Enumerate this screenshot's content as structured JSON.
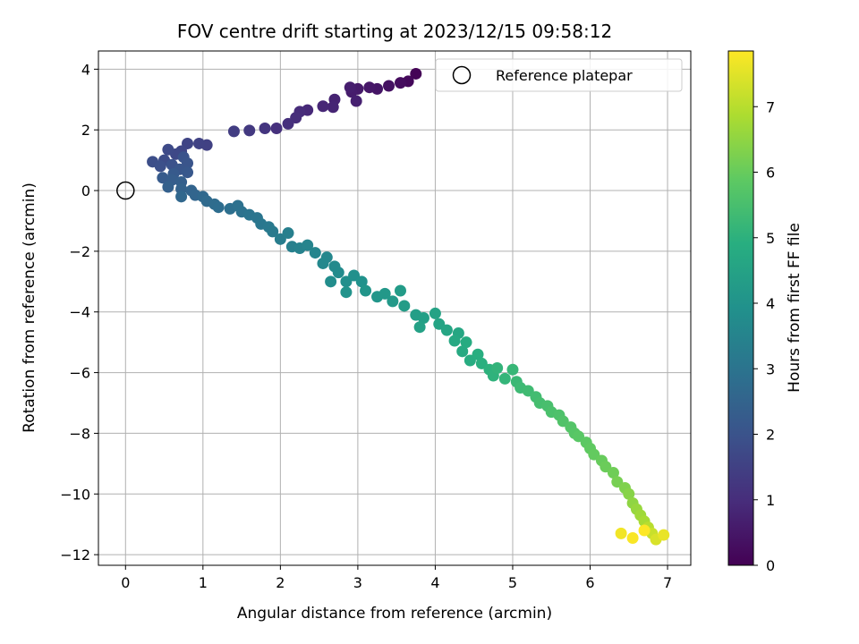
{
  "chart_data": {
    "type": "scatter",
    "title": "FOV centre drift starting at 2023/12/15 09:58:12",
    "xlabel": "Angular distance from reference (arcmin)",
    "ylabel": "Rotation from reference (arcmin)",
    "xlim": [
      -0.35,
      7.3
    ],
    "ylim": [
      -12.35,
      4.6
    ],
    "xticks": [
      0,
      1,
      2,
      3,
      4,
      5,
      6,
      7
    ],
    "yticks": [
      -12,
      -10,
      -8,
      -6,
      -4,
      -2,
      0,
      2,
      4
    ],
    "grid": true,
    "legend": {
      "placement": "top-right",
      "entries": [
        "Reference platepar"
      ]
    },
    "reference_point": {
      "name": "Reference platepar",
      "x": 0,
      "y": 0
    },
    "colorbar": {
      "label": "Hours from first FF file",
      "colormap": "viridis",
      "range": [
        0,
        7.85
      ],
      "ticks": [
        0,
        1,
        2,
        3,
        4,
        5,
        6,
        7
      ]
    },
    "series": [
      {
        "value_key": "hours_from_first_ff_file",
        "points": [
          [
            3.75,
            3.85,
            0.05
          ],
          [
            3.65,
            3.6,
            0.15
          ],
          [
            3.55,
            3.55,
            0.25
          ],
          [
            3.4,
            3.45,
            0.35
          ],
          [
            3.25,
            3.35,
            0.45
          ],
          [
            3.15,
            3.4,
            0.5
          ],
          [
            3.0,
            3.35,
            0.55
          ],
          [
            2.92,
            3.25,
            0.6
          ],
          [
            2.9,
            3.4,
            0.65
          ],
          [
            2.98,
            2.95,
            0.7
          ],
          [
            2.7,
            3.0,
            0.75
          ],
          [
            2.68,
            2.75,
            0.8
          ],
          [
            2.55,
            2.78,
            0.85
          ],
          [
            2.35,
            2.65,
            0.9
          ],
          [
            2.25,
            2.6,
            0.95
          ],
          [
            2.2,
            2.4,
            1.0
          ],
          [
            2.1,
            2.2,
            1.05
          ],
          [
            1.95,
            2.05,
            1.1
          ],
          [
            1.8,
            2.05,
            1.2
          ],
          [
            1.6,
            1.98,
            1.3
          ],
          [
            1.4,
            1.95,
            1.4
          ],
          [
            1.05,
            1.5,
            1.5
          ],
          [
            0.95,
            1.55,
            1.55
          ],
          [
            0.8,
            1.55,
            1.6
          ],
          [
            0.72,
            1.3,
            1.65
          ],
          [
            0.65,
            1.2,
            1.7
          ],
          [
            0.55,
            1.35,
            1.75
          ],
          [
            0.5,
            1.0,
            1.8
          ],
          [
            0.35,
            0.95,
            1.85
          ],
          [
            0.45,
            0.8,
            1.9
          ],
          [
            0.6,
            0.85,
            1.95
          ],
          [
            0.75,
            1.1,
            2.0
          ],
          [
            0.8,
            0.9,
            2.05
          ],
          [
            0.7,
            0.7,
            2.1
          ],
          [
            0.8,
            0.6,
            2.15
          ],
          [
            0.62,
            0.55,
            2.2
          ],
          [
            0.48,
            0.42,
            2.25
          ],
          [
            0.6,
            0.35,
            2.3
          ],
          [
            0.72,
            0.28,
            2.35
          ],
          [
            0.55,
            0.12,
            2.4
          ],
          [
            0.72,
            0.05,
            2.45
          ],
          [
            0.85,
            0.0,
            2.5
          ],
          [
            0.9,
            -0.15,
            2.55
          ],
          [
            0.72,
            -0.2,
            2.6
          ],
          [
            1.0,
            -0.2,
            2.65
          ],
          [
            1.05,
            -0.35,
            2.7
          ],
          [
            1.15,
            -0.45,
            2.75
          ],
          [
            1.2,
            -0.55,
            2.8
          ],
          [
            1.35,
            -0.6,
            2.85
          ],
          [
            1.45,
            -0.5,
            2.9
          ],
          [
            1.5,
            -0.7,
            2.95
          ],
          [
            1.6,
            -0.8,
            3.0
          ],
          [
            1.7,
            -0.9,
            3.05
          ],
          [
            1.75,
            -1.1,
            3.1
          ],
          [
            1.85,
            -1.2,
            3.15
          ],
          [
            1.9,
            -1.35,
            3.2
          ],
          [
            2.0,
            -1.6,
            3.3
          ],
          [
            2.1,
            -1.4,
            3.35
          ],
          [
            2.15,
            -1.85,
            3.4
          ],
          [
            2.25,
            -1.9,
            3.45
          ],
          [
            2.35,
            -1.8,
            3.5
          ],
          [
            2.45,
            -2.05,
            3.55
          ],
          [
            2.6,
            -2.2,
            3.6
          ],
          [
            2.55,
            -2.4,
            3.65
          ],
          [
            2.7,
            -2.5,
            3.7
          ],
          [
            2.75,
            -2.7,
            3.75
          ],
          [
            2.65,
            -3.0,
            3.8
          ],
          [
            2.85,
            -3.0,
            3.85
          ],
          [
            2.95,
            -2.8,
            3.9
          ],
          [
            3.05,
            -3.0,
            3.95
          ],
          [
            2.85,
            -3.35,
            4.0
          ],
          [
            3.1,
            -3.3,
            4.05
          ],
          [
            3.25,
            -3.5,
            4.1
          ],
          [
            3.35,
            -3.4,
            4.15
          ],
          [
            3.45,
            -3.65,
            4.2
          ],
          [
            3.55,
            -3.3,
            4.25
          ],
          [
            3.6,
            -3.8,
            4.3
          ],
          [
            3.75,
            -4.1,
            4.35
          ],
          [
            3.85,
            -4.2,
            4.4
          ],
          [
            3.8,
            -4.5,
            4.45
          ],
          [
            4.0,
            -4.05,
            4.5
          ],
          [
            4.05,
            -4.4,
            4.55
          ],
          [
            4.15,
            -4.6,
            4.6
          ],
          [
            4.3,
            -4.7,
            4.65
          ],
          [
            4.25,
            -4.95,
            4.7
          ],
          [
            4.35,
            -5.3,
            4.75
          ],
          [
            4.4,
            -5.0,
            4.8
          ],
          [
            4.45,
            -5.6,
            4.85
          ],
          [
            4.55,
            -5.4,
            4.9
          ],
          [
            4.6,
            -5.7,
            4.95
          ],
          [
            4.7,
            -5.9,
            5.0
          ],
          [
            4.75,
            -6.1,
            5.05
          ],
          [
            4.8,
            -5.85,
            5.1
          ],
          [
            4.9,
            -6.2,
            5.15
          ],
          [
            5.0,
            -5.9,
            5.2
          ],
          [
            5.05,
            -6.3,
            5.25
          ],
          [
            5.1,
            -6.5,
            5.3
          ],
          [
            5.2,
            -6.6,
            5.35
          ],
          [
            5.3,
            -6.8,
            5.4
          ],
          [
            5.35,
            -7.0,
            5.45
          ],
          [
            5.45,
            -7.1,
            5.5
          ],
          [
            5.5,
            -7.3,
            5.55
          ],
          [
            5.6,
            -7.4,
            5.6
          ],
          [
            5.65,
            -7.6,
            5.65
          ],
          [
            5.75,
            -7.8,
            5.7
          ],
          [
            5.8,
            -8.0,
            5.75
          ],
          [
            5.85,
            -8.1,
            5.8
          ],
          [
            5.95,
            -8.3,
            5.85
          ],
          [
            6.0,
            -8.5,
            5.9
          ],
          [
            6.05,
            -8.7,
            5.95
          ],
          [
            6.15,
            -8.9,
            6.0
          ],
          [
            6.2,
            -9.1,
            6.05
          ],
          [
            6.3,
            -9.3,
            6.1
          ],
          [
            6.35,
            -9.6,
            6.2
          ],
          [
            6.45,
            -9.8,
            6.3
          ],
          [
            6.5,
            -10.0,
            6.4
          ],
          [
            6.55,
            -10.3,
            6.5
          ],
          [
            6.6,
            -10.5,
            6.6
          ],
          [
            6.65,
            -10.7,
            6.7
          ],
          [
            6.7,
            -10.9,
            6.8
          ],
          [
            6.75,
            -11.1,
            7.0
          ],
          [
            6.8,
            -11.3,
            7.2
          ],
          [
            6.85,
            -11.5,
            7.4
          ],
          [
            6.95,
            -11.35,
            7.6
          ],
          [
            6.4,
            -11.3,
            7.7
          ],
          [
            6.55,
            -11.45,
            7.8
          ],
          [
            6.7,
            -11.2,
            7.85
          ]
        ]
      }
    ]
  }
}
